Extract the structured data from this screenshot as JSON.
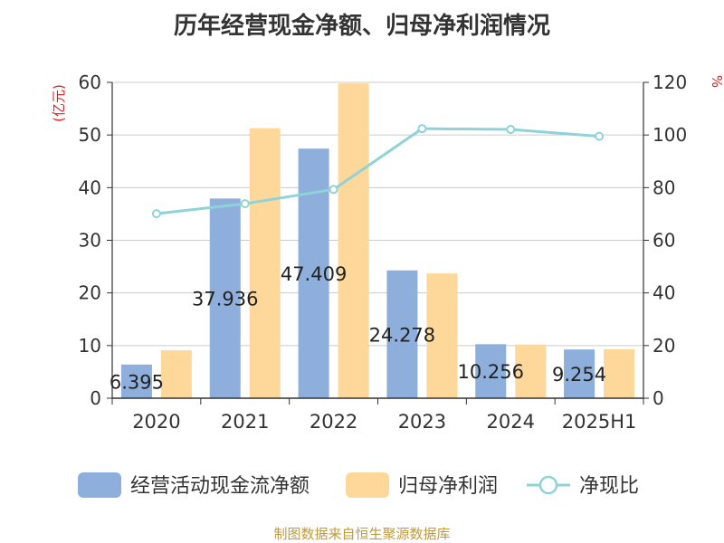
{
  "chart_data": {
    "type": "bar",
    "title": "历年经营现金净额、归母净利润情况",
    "categories": [
      "2020",
      "2021",
      "2022",
      "2023",
      "2024",
      "2025H1"
    ],
    "series": [
      {
        "name": "经营活动现金流净额",
        "type": "bar",
        "axis": "left",
        "color": "#8eaedb",
        "values": [
          6.395,
          37.936,
          47.409,
          24.278,
          10.256,
          9.254
        ],
        "labels": [
          "6.395",
          "37.936",
          "47.409",
          "24.278",
          "10.256",
          "9.254"
        ]
      },
      {
        "name": "归母净利润",
        "type": "bar",
        "axis": "left",
        "color": "#fdd89a",
        "values": [
          9.1,
          51.3,
          59.8,
          23.7,
          10.2,
          9.3
        ]
      },
      {
        "name": "净现比",
        "type": "line",
        "axis": "right",
        "color": "#8fd3d8",
        "values": [
          70.1,
          73.9,
          79.3,
          102.4,
          102.1,
          99.5
        ]
      }
    ],
    "y_left": {
      "label": "(亿元)",
      "min": 0,
      "max": 60,
      "ticks": [
        0,
        10,
        20,
        30,
        40,
        50,
        60
      ]
    },
    "y_right": {
      "label": "%",
      "min": 0,
      "max": 120,
      "ticks": [
        0,
        20,
        40,
        60,
        80,
        100,
        120
      ]
    },
    "grid": true,
    "legend_position": "bottom"
  },
  "footer": {
    "source": "制图数据来自恒生聚源数据库"
  }
}
